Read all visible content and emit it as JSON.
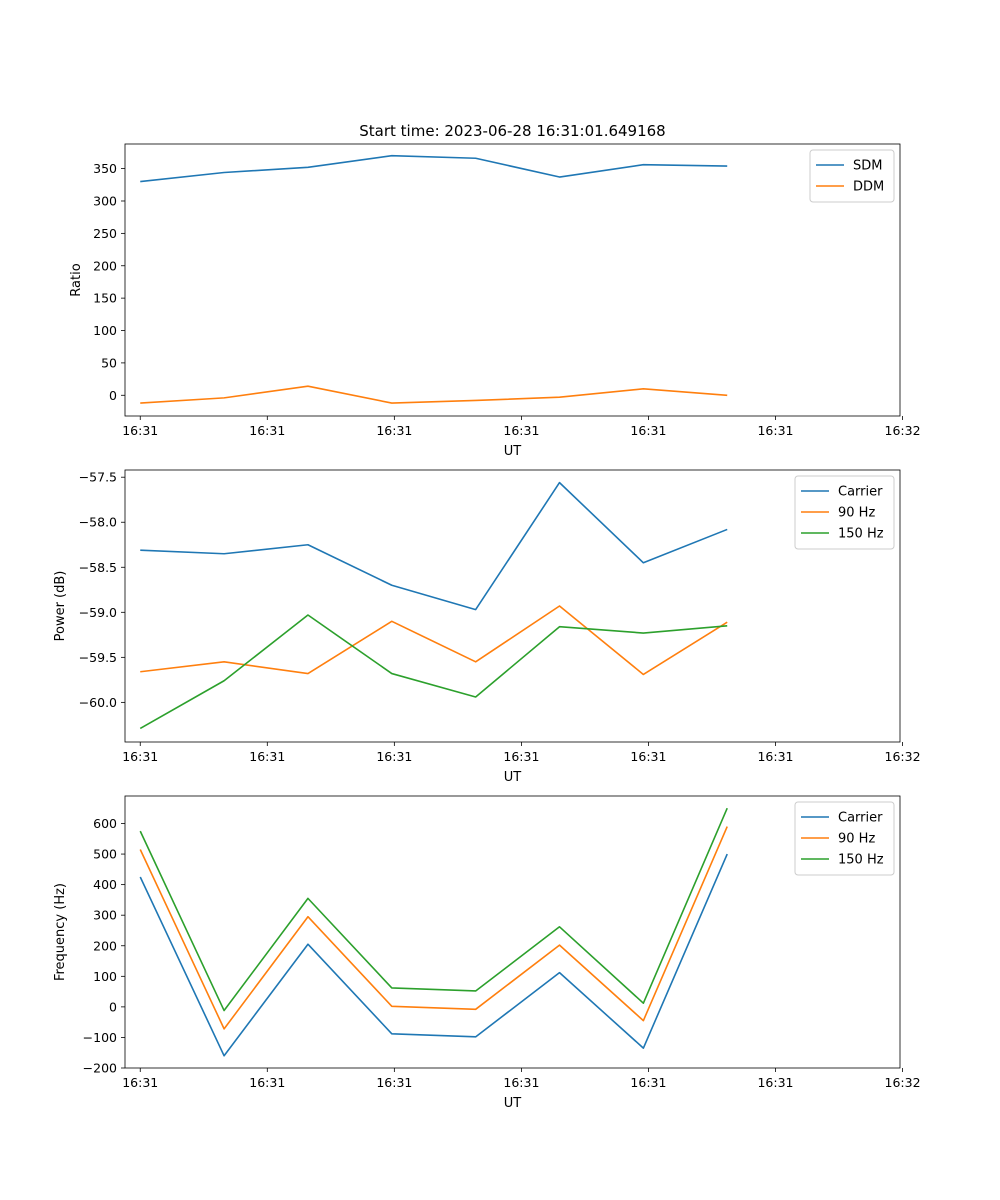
{
  "figure": {
    "title": "Start time: 2023-06-28 16:31:01.649168"
  },
  "chart_data": [
    {
      "type": "line",
      "title": "Start time: 2023-06-28 16:31:01.649168",
      "xlabel": "UT",
      "ylabel": "Ratio",
      "x": [
        "16:31:01.95",
        "16:31:02.28",
        "16:31:02.61",
        "16:31:02.94",
        "16:31:03.27",
        "16:31:03.60",
        "16:31:03.93",
        "16:31:04.26"
      ],
      "xlim": [
        "16:31:01.89",
        "16:31:04.94"
      ],
      "xticks": [
        "16:31:01.95",
        "16:31:02.45",
        "16:31:02.95",
        "16:31:03.45",
        "16:31:03.95",
        "16:31:04.45",
        "16:31:04.95"
      ],
      "xtick_labels": [
        "16:31",
        "16:31",
        "16:31",
        "16:31",
        "16:31",
        "16:31",
        "16:32"
      ],
      "ylim": [
        -32,
        388
      ],
      "yticks": [
        0,
        50,
        100,
        150,
        200,
        250,
        300,
        350
      ],
      "ytick_labels": [
        "0",
        "50",
        "100",
        "150",
        "200",
        "250",
        "300",
        "350"
      ],
      "legend": "top-right",
      "series": [
        {
          "name": "SDM",
          "color": "#1f77b4",
          "values": [
            330,
            344,
            352,
            370,
            366,
            337,
            356,
            354
          ]
        },
        {
          "name": "DDM",
          "color": "#ff7f0e",
          "values": [
            -12,
            -4,
            14,
            -12,
            -8,
            -3,
            10,
            0
          ]
        }
      ]
    },
    {
      "type": "line",
      "xlabel": "UT",
      "ylabel": "Power (dB)",
      "x": [
        "16:31:01.95",
        "16:31:02.28",
        "16:31:02.61",
        "16:31:02.94",
        "16:31:03.27",
        "16:31:03.60",
        "16:31:03.93",
        "16:31:04.26"
      ],
      "xlim": [
        "16:31:01.89",
        "16:31:04.94"
      ],
      "xticks": [
        "16:31:01.95",
        "16:31:02.45",
        "16:31:02.95",
        "16:31:03.45",
        "16:31:03.95",
        "16:31:04.45",
        "16:31:04.95"
      ],
      "xtick_labels": [
        "16:31",
        "16:31",
        "16:31",
        "16:31",
        "16:31",
        "16:31",
        "16:32"
      ],
      "ylim": [
        -60.44,
        -57.42
      ],
      "yticks": [
        -60.0,
        -59.5,
        -59.0,
        -58.5,
        -58.0,
        -57.5
      ],
      "ytick_labels": [
        "−60.0",
        "−59.5",
        "−59.0",
        "−58.5",
        "−58.0",
        "−57.5"
      ],
      "legend": "top-right",
      "series": [
        {
          "name": "Carrier",
          "color": "#1f77b4",
          "values": [
            -58.31,
            -58.35,
            -58.25,
            -58.7,
            -58.97,
            -57.56,
            -58.45,
            -58.08
          ]
        },
        {
          "name": "90 Hz",
          "color": "#ff7f0e",
          "values": [
            -59.66,
            -59.55,
            -59.68,
            -59.1,
            -59.55,
            -58.93,
            -59.69,
            -59.11
          ]
        },
        {
          "name": "150 Hz",
          "color": "#2ca02c",
          "values": [
            -60.29,
            -59.76,
            -59.03,
            -59.68,
            -59.94,
            -59.16,
            -59.23,
            -59.15
          ]
        }
      ]
    },
    {
      "type": "line",
      "xlabel": "UT",
      "ylabel": "Frequency (Hz)",
      "x": [
        "16:31:01.95",
        "16:31:02.28",
        "16:31:02.61",
        "16:31:02.94",
        "16:31:03.27",
        "16:31:03.60",
        "16:31:03.93",
        "16:31:04.26"
      ],
      "xlim": [
        "16:31:01.89",
        "16:31:04.94"
      ],
      "xticks": [
        "16:31:01.95",
        "16:31:02.45",
        "16:31:02.95",
        "16:31:03.45",
        "16:31:03.95",
        "16:31:04.45",
        "16:31:04.95"
      ],
      "xtick_labels": [
        "16:31",
        "16:31",
        "16:31",
        "16:31",
        "16:31",
        "16:31",
        "16:32"
      ],
      "ylim": [
        -200,
        690
      ],
      "yticks": [
        -200,
        -100,
        0,
        100,
        200,
        300,
        400,
        500,
        600
      ],
      "ytick_labels": [
        "−200",
        "−100",
        "0",
        "100",
        "200",
        "300",
        "400",
        "500",
        "600"
      ],
      "legend": "top-right",
      "series": [
        {
          "name": "Carrier",
          "color": "#1f77b4",
          "values": [
            425,
            -160,
            205,
            -88,
            -98,
            112,
            -135,
            500
          ]
        },
        {
          "name": "90 Hz",
          "color": "#ff7f0e",
          "values": [
            515,
            -72,
            295,
            2,
            -8,
            202,
            -45,
            590
          ]
        },
        {
          "name": "150 Hz",
          "color": "#2ca02c",
          "values": [
            575,
            -12,
            355,
            62,
            52,
            262,
            12,
            650
          ]
        }
      ]
    }
  ]
}
